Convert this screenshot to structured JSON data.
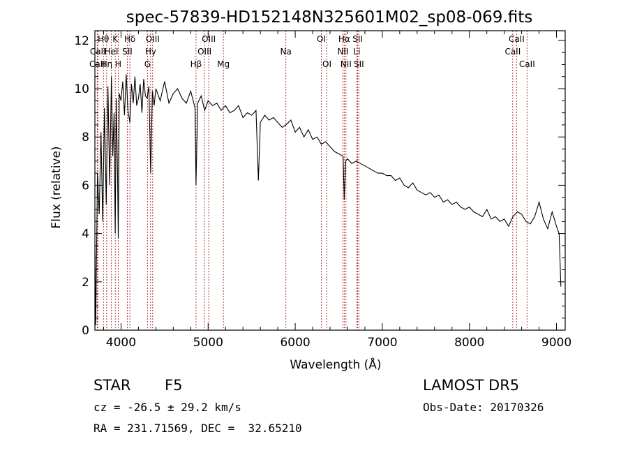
{
  "chart_data": {
    "type": "line",
    "title": "spec-57839-HD152148N325601M02_sp08-069.fits",
    "xlabel": "Wavelength (Å)",
    "ylabel": "Flux (relative)",
    "xlim": [
      3700,
      9100
    ],
    "ylim": [
      0,
      12.4
    ],
    "x_ticks": [
      4000,
      5000,
      6000,
      7000,
      8000,
      9000
    ],
    "y_ticks": [
      0,
      2,
      4,
      6,
      8,
      10,
      12
    ],
    "grid": false,
    "legend": "none",
    "line_color": "#000000",
    "marker_color": "#b22222",
    "series": [
      {
        "x": [
          3700,
          3710,
          3730,
          3750,
          3770,
          3790,
          3810,
          3830,
          3850,
          3870,
          3890,
          3905,
          3920,
          3933,
          3945,
          3960,
          3968,
          3980,
          4000,
          4020,
          4040,
          4060,
          4080,
          4101,
          4120,
          4140,
          4160,
          4180,
          4200,
          4220,
          4240,
          4260,
          4280,
          4300,
          4320,
          4340,
          4360,
          4380,
          4400,
          4450,
          4500,
          4550,
          4600,
          4650,
          4700,
          4750,
          4800,
          4850,
          4861,
          4880,
          4920,
          4960,
          5000,
          5050,
          5100,
          5150,
          5200,
          5250,
          5300,
          5350,
          5400,
          5450,
          5500,
          5550,
          5577,
          5600,
          5650,
          5700,
          5750,
          5800,
          5850,
          5893,
          5950,
          6000,
          6050,
          6100,
          6150,
          6200,
          6250,
          6300,
          6350,
          6400,
          6450,
          6500,
          6550,
          6563,
          6580,
          6600,
          6650,
          6700,
          6750,
          6800,
          6850,
          6900,
          6950,
          7000,
          7050,
          7100,
          7150,
          7200,
          7250,
          7300,
          7350,
          7400,
          7450,
          7500,
          7550,
          7600,
          7650,
          7700,
          7750,
          7800,
          7850,
          7900,
          7950,
          8000,
          8050,
          8100,
          8150,
          8200,
          8250,
          8300,
          8350,
          8400,
          8450,
          8500,
          8550,
          8600,
          8650,
          8700,
          8750,
          8800,
          8850,
          8900,
          8950,
          9000,
          9030,
          9050
        ],
        "y": [
          3.5,
          0.2,
          6.5,
          4.8,
          8.2,
          4.5,
          9.2,
          5.2,
          10.1,
          6.0,
          10.5,
          7.2,
          9.0,
          4.0,
          9.6,
          6.4,
          3.8,
          9.8,
          9.5,
          10.3,
          8.9,
          10.6,
          9.1,
          8.6,
          10.2,
          9.4,
          10.5,
          9.3,
          9.6,
          10.2,
          9.0,
          10.4,
          9.7,
          9.6,
          10.1,
          6.5,
          9.9,
          9.3,
          10.0,
          9.5,
          10.3,
          9.4,
          9.8,
          10.0,
          9.6,
          9.4,
          9.9,
          9.2,
          6.0,
          9.4,
          9.7,
          9.1,
          9.5,
          9.3,
          9.4,
          9.1,
          9.3,
          9.0,
          9.1,
          9.3,
          8.8,
          9.0,
          8.9,
          9.1,
          6.2,
          8.6,
          8.9,
          8.7,
          8.8,
          8.6,
          8.4,
          8.5,
          8.7,
          8.2,
          8.4,
          8.0,
          8.3,
          7.9,
          8.0,
          7.7,
          7.8,
          7.6,
          7.4,
          7.3,
          7.2,
          5.4,
          7.0,
          7.1,
          6.9,
          7.0,
          6.9,
          6.8,
          6.7,
          6.6,
          6.5,
          6.5,
          6.4,
          6.4,
          6.2,
          6.3,
          6.0,
          5.9,
          6.1,
          5.8,
          5.7,
          5.6,
          5.7,
          5.5,
          5.6,
          5.3,
          5.4,
          5.2,
          5.3,
          5.1,
          5.0,
          5.1,
          4.9,
          4.8,
          4.7,
          5.0,
          4.6,
          4.7,
          4.5,
          4.6,
          4.3,
          4.7,
          4.9,
          4.8,
          4.5,
          4.4,
          4.7,
          5.3,
          4.6,
          4.2,
          4.9,
          4.3,
          4.0,
          1.8
        ]
      }
    ],
    "spectral_lines": [
      {
        "label": "Hθ",
        "x": 3798,
        "row": 0
      },
      {
        "label": "K",
        "x": 3934,
        "row": 0
      },
      {
        "label": "Hδ",
        "x": 4101,
        "row": 0
      },
      {
        "label": "OIII",
        "x": 4363,
        "row": 0
      },
      {
        "label": "OIII",
        "x": 5007,
        "row": 0
      },
      {
        "label": "OI",
        "x": 6300,
        "row": 0
      },
      {
        "label": "Hα",
        "x": 6563,
        "row": 0
      },
      {
        "label": "SII",
        "x": 6717,
        "row": 0
      },
      {
        "label": "CaII",
        "x": 8542,
        "row": 0
      },
      {
        "label": "CaII",
        "x": 3734,
        "row": 1
      },
      {
        "label": "HeI",
        "x": 3889,
        "row": 1
      },
      {
        "label": "SII",
        "x": 4072,
        "row": 1
      },
      {
        "label": "Hγ",
        "x": 4340,
        "row": 1
      },
      {
        "label": "OIII",
        "x": 4959,
        "row": 1
      },
      {
        "label": "Na",
        "x": 5893,
        "row": 1
      },
      {
        "label": "NII",
        "x": 6548,
        "row": 1
      },
      {
        "label": "Li",
        "x": 6708,
        "row": 1
      },
      {
        "label": "CaII",
        "x": 8498,
        "row": 1
      },
      {
        "label": "CaII",
        "x": 3727,
        "row": 2
      },
      {
        "label": "Hη",
        "x": 3835,
        "row": 2
      },
      {
        "label": "H",
        "x": 3969,
        "row": 2
      },
      {
        "label": "G",
        "x": 4304,
        "row": 2
      },
      {
        "label": "Hβ",
        "x": 4861,
        "row": 2
      },
      {
        "label": "Mg",
        "x": 5175,
        "row": 2
      },
      {
        "label": "OI",
        "x": 6364,
        "row": 2
      },
      {
        "label": "NII",
        "x": 6583,
        "row": 2
      },
      {
        "label": "SII",
        "x": 6731,
        "row": 2
      },
      {
        "label": "CaII",
        "x": 8662,
        "row": 2
      }
    ]
  },
  "info": {
    "object_class": "STAR",
    "subclass": "F5",
    "survey": "LAMOST DR5",
    "cz": "cz = -26.5 ± 29.2 km/s",
    "obs_date": "Obs-Date: 20170326",
    "coords": "RA = 231.71569, DEC =  32.65210"
  }
}
